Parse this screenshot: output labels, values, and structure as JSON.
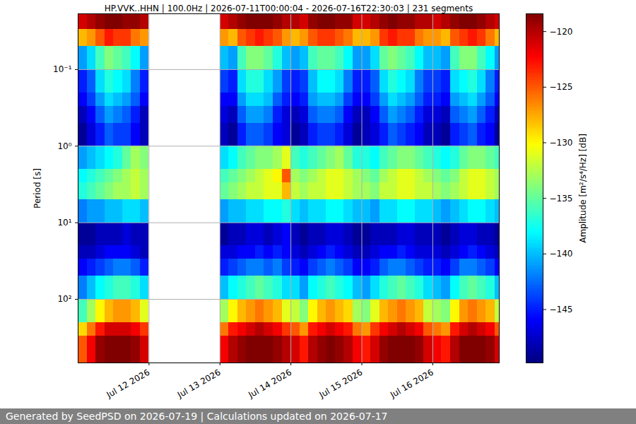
{
  "chart_data": {
    "type": "heatmap",
    "title": "HP.VVK..HHN | 100.0Hz | 2026-07-11T00:00:04 - 2026-07-16T22:30:03 | 231 segments",
    "ylabel": "Period [s]",
    "footer": "Generated by SeedPSD on 2026-07-19 | Calculations updated on 2026-07-17",
    "log": "y",
    "grid": true,
    "color": "jet",
    "xlim": [
      "2026-07-11T00:00:04",
      "2026-07-16T22:30:03"
    ],
    "xticks": [
      {
        "value": "2026-07-12",
        "label": "Jul 12 2026"
      },
      {
        "value": "2026-07-13",
        "label": "Jul 13 2026"
      },
      {
        "value": "2026-07-14",
        "label": "Jul 14 2026"
      },
      {
        "value": "2026-07-15",
        "label": "Jul 15 2026"
      },
      {
        "value": "2026-07-16",
        "label": "Jul 16 2026"
      }
    ],
    "ylim": [
      0.0187,
      676
    ],
    "yticks": [
      {
        "value": 0.1,
        "label": "10⁻¹"
      },
      {
        "value": 1,
        "label": "10⁰"
      },
      {
        "value": 10,
        "label": "10¹"
      },
      {
        "value": 100,
        "label": "10²"
      }
    ],
    "colorbar": {
      "label": "Amplitude [m²/s⁴/Hz] [dB]",
      "lim": [
        -149.8,
        -118.4
      ],
      "ticks": [
        -145,
        -140,
        -135,
        -130,
        -125,
        -120
      ]
    },
    "x_edges": [
      "2026-07-11T00:00:04",
      "2026-07-11T03:00:00",
      "2026-07-11T06:00:00",
      "2026-07-11T09:00:00",
      "2026-07-11T12:00:00",
      "2026-07-11T15:00:00",
      "2026-07-11T18:00:00",
      "2026-07-11T21:00:00",
      "2026-07-12T00:00:00",
      "2026-07-12T03:00:00",
      "2026-07-12T06:00:00",
      "2026-07-12T09:00:00",
      "2026-07-12T12:00:00",
      "2026-07-12T15:00:00",
      "2026-07-12T18:00:00",
      "2026-07-12T21:00:00",
      "2026-07-13T00:00:00",
      "2026-07-13T03:00:00",
      "2026-07-13T06:00:00",
      "2026-07-13T09:00:00",
      "2026-07-13T12:00:00",
      "2026-07-13T15:00:00",
      "2026-07-13T18:00:00",
      "2026-07-13T21:00:00",
      "2026-07-14T00:00:00",
      "2026-07-14T03:00:00",
      "2026-07-14T06:00:00",
      "2026-07-14T09:00:00",
      "2026-07-14T12:00:00",
      "2026-07-14T15:00:00",
      "2026-07-14T18:00:00",
      "2026-07-14T21:00:00",
      "2026-07-15T00:00:00",
      "2026-07-15T03:00:00",
      "2026-07-15T06:00:00",
      "2026-07-15T09:00:00",
      "2026-07-15T12:00:00",
      "2026-07-15T15:00:00",
      "2026-07-15T18:00:00",
      "2026-07-15T21:00:00",
      "2026-07-16T00:00:00",
      "2026-07-16T03:00:00",
      "2026-07-16T06:00:00",
      "2026-07-16T09:00:00",
      "2026-07-16T12:00:00",
      "2026-07-16T15:00:00",
      "2026-07-16T18:00:00",
      "2026-07-16T21:00:00",
      "2026-07-16T22:30:03"
    ],
    "y_edges": [
      0.0187,
      0.03,
      0.05,
      0.1,
      0.2,
      0.3,
      0.5,
      1,
      2,
      3,
      5,
      10,
      20,
      30,
      50,
      100,
      200,
      300,
      676
    ],
    "cells": [
      [
        -121,
        -120,
        -119,
        -118,
        -118,
        -119,
        -119,
        -120,
        null,
        null,
        null,
        null,
        null,
        null,
        null,
        null,
        -121,
        -120,
        -119,
        -118,
        -118,
        -118,
        -119,
        -120,
        -120,
        -121,
        -119,
        -118,
        -118,
        -119,
        -119,
        -121,
        -121,
        -120,
        -119,
        -118,
        -119,
        -119,
        -120,
        -120,
        -121,
        -120,
        -119,
        -118,
        -118,
        -119,
        -120,
        -121
      ],
      [
        -128,
        -127,
        -125,
        -123,
        -124,
        -124,
        -126,
        -127,
        null,
        null,
        null,
        null,
        null,
        null,
        null,
        null,
        -127,
        -128,
        -125,
        -124,
        -123,
        -124,
        -125,
        -127,
        -128,
        -127,
        -125,
        -124,
        -124,
        -125,
        -126,
        -128,
        -128,
        -127,
        -124,
        -123,
        -124,
        -124,
        -126,
        -127,
        -127,
        -128,
        -125,
        -124,
        -123,
        -124,
        -126,
        -128
      ],
      [
        -141,
        -139,
        -136,
        -134,
        -135,
        -136,
        -138,
        -141,
        null,
        null,
        null,
        null,
        null,
        null,
        null,
        null,
        -140,
        -141,
        -136,
        -134,
        -134,
        -135,
        -137,
        -140,
        -141,
        -140,
        -136,
        -135,
        -135,
        -136,
        -138,
        -141,
        -141,
        -139,
        -135,
        -134,
        -135,
        -136,
        -138,
        -140,
        -140,
        -141,
        -136,
        -134,
        -134,
        -136,
        -138,
        -141
      ],
      [
        -145,
        -143,
        -139,
        -137,
        -138,
        -139,
        -142,
        -145,
        null,
        null,
        null,
        null,
        null,
        null,
        null,
        null,
        -144,
        -145,
        -139,
        -137,
        -137,
        -139,
        -141,
        -144,
        -145,
        -144,
        -140,
        -138,
        -138,
        -139,
        -142,
        -145,
        -145,
        -143,
        -139,
        -137,
        -138,
        -139,
        -142,
        -144,
        -144,
        -145,
        -139,
        -138,
        -137,
        -139,
        -142,
        -145
      ],
      [
        -146,
        -144,
        -141,
        -139,
        -140,
        -141,
        -143,
        -146,
        null,
        null,
        null,
        null,
        null,
        null,
        null,
        null,
        -146,
        -146,
        -141,
        -139,
        -139,
        -140,
        -143,
        -145,
        -146,
        -145,
        -141,
        -140,
        -140,
        -141,
        -144,
        -146,
        -146,
        -144,
        -141,
        -139,
        -140,
        -141,
        -143,
        -145,
        -145,
        -146,
        -141,
        -140,
        -139,
        -141,
        -143,
        -146
      ],
      [
        -148,
        -146,
        -143,
        -141,
        -142,
        -143,
        -145,
        -148,
        null,
        null,
        null,
        null,
        null,
        null,
        null,
        null,
        -147,
        -148,
        -143,
        -141,
        -141,
        -142,
        -145,
        -147,
        -148,
        -147,
        -143,
        -142,
        -142,
        -143,
        -146,
        -148,
        -148,
        -146,
        -143,
        -141,
        -142,
        -143,
        -145,
        -147,
        -147,
        -148,
        -143,
        -142,
        -141,
        -143,
        -145,
        -148
      ],
      [
        -149,
        -147,
        -145,
        -143,
        -144,
        -144,
        -146,
        -148,
        null,
        null,
        null,
        null,
        null,
        null,
        null,
        null,
        -148,
        -149,
        -145,
        -143,
        -143,
        -144,
        -146,
        -147,
        -149,
        -148,
        -145,
        -144,
        -144,
        -145,
        -147,
        -149,
        -148,
        -147,
        -145,
        -143,
        -144,
        -145,
        -146,
        -148,
        -148,
        -149,
        -145,
        -144,
        -143,
        -145,
        -146,
        -149
      ],
      [
        -141,
        -140,
        -139,
        -138,
        -137,
        -135,
        -133,
        -134,
        null,
        null,
        null,
        null,
        null,
        null,
        null,
        null,
        -139,
        -138,
        -136,
        -135,
        -134,
        -134,
        -133,
        -131,
        -136,
        -137,
        -136,
        -135,
        -134,
        -133,
        -135,
        -137,
        -137,
        -138,
        -136,
        -135,
        -134,
        -134,
        -135,
        -136,
        -137,
        -138,
        -137,
        -135,
        -134,
        -134,
        -135,
        -136
      ],
      [
        -138,
        -137,
        -136,
        -135,
        -134,
        -133,
        -132,
        -133,
        null,
        null,
        null,
        null,
        null,
        null,
        null,
        null,
        -136,
        -135,
        -134,
        -133,
        -132,
        -131,
        -130,
        -125,
        -133,
        -134,
        -133,
        -132,
        -131,
        -131,
        -132,
        -133,
        -134,
        -135,
        -133,
        -132,
        -131,
        -131,
        -132,
        -133,
        -134,
        -135,
        -134,
        -132,
        -131,
        -131,
        -132,
        -133
      ],
      [
        -137,
        -136,
        -135,
        -134,
        -133,
        -133,
        -132,
        -133,
        null,
        null,
        null,
        null,
        null,
        null,
        null,
        null,
        -135,
        -134,
        -133,
        -132,
        -132,
        -131,
        -131,
        -128,
        -132,
        -133,
        -132,
        -132,
        -131,
        -131,
        -132,
        -133,
        -133,
        -134,
        -132,
        -132,
        -131,
        -131,
        -132,
        -132,
        -133,
        -134,
        -133,
        -132,
        -131,
        -131,
        -132,
        -133
      ],
      [
        -142,
        -141,
        -141,
        -140,
        -140,
        -139,
        -139,
        -140,
        null,
        null,
        null,
        null,
        null,
        null,
        null,
        null,
        -141,
        -140,
        -140,
        -139,
        -139,
        -138,
        -138,
        -137,
        -139,
        -140,
        -139,
        -139,
        -138,
        -138,
        -139,
        -140,
        -140,
        -141,
        -139,
        -139,
        -138,
        -138,
        -139,
        -139,
        -140,
        -141,
        -140,
        -139,
        -138,
        -138,
        -139,
        -140
      ],
      [
        -149,
        -149,
        -148,
        -148,
        -148,
        -147,
        -148,
        -148,
        null,
        null,
        null,
        null,
        null,
        null,
        null,
        null,
        -149,
        -148,
        -148,
        -147,
        -147,
        -148,
        -147,
        -146,
        -148,
        -149,
        -148,
        -148,
        -147,
        -147,
        -148,
        -149,
        -149,
        -148,
        -148,
        -148,
        -147,
        -147,
        -148,
        -148,
        -148,
        -149,
        -148,
        -147,
        -147,
        -148,
        -148,
        -149
      ],
      [
        -148,
        -148,
        -147,
        -146,
        -146,
        -146,
        -147,
        -148,
        null,
        null,
        null,
        null,
        null,
        null,
        null,
        null,
        -147,
        -147,
        -146,
        -146,
        -145,
        -146,
        -145,
        -146,
        -147,
        -148,
        -147,
        -146,
        -145,
        -146,
        -147,
        -148,
        -148,
        -147,
        -146,
        -146,
        -145,
        -146,
        -147,
        -147,
        -147,
        -148,
        -147,
        -146,
        -145,
        -146,
        -147,
        -148
      ],
      [
        -146,
        -145,
        -144,
        -143,
        -142,
        -142,
        -143,
        -145,
        null,
        null,
        null,
        null,
        null,
        null,
        null,
        null,
        -145,
        -144,
        -143,
        -142,
        -142,
        -143,
        -142,
        -144,
        -145,
        -146,
        -144,
        -143,
        -142,
        -143,
        -144,
        -146,
        -146,
        -145,
        -143,
        -142,
        -142,
        -143,
        -144,
        -145,
        -145,
        -146,
        -144,
        -142,
        -142,
        -143,
        -144,
        -146
      ],
      [
        -142,
        -140,
        -138,
        -137,
        -136,
        -136,
        -137,
        -139,
        null,
        null,
        null,
        null,
        null,
        null,
        null,
        null,
        -140,
        -138,
        -137,
        -136,
        -135,
        -136,
        -137,
        -139,
        -139,
        -141,
        -138,
        -137,
        -136,
        -137,
        -138,
        -140,
        -141,
        -139,
        -137,
        -136,
        -135,
        -136,
        -137,
        -139,
        -140,
        -141,
        -138,
        -136,
        -135,
        -136,
        -137,
        -140
      ],
      [
        -136,
        -133,
        -130,
        -128,
        -127,
        -127,
        -128,
        -131,
        null,
        null,
        null,
        null,
        null,
        null,
        null,
        null,
        -133,
        -130,
        -128,
        -127,
        -126,
        -127,
        -128,
        -131,
        -132,
        -134,
        -130,
        -128,
        -127,
        -128,
        -129,
        -133,
        -134,
        -131,
        -128,
        -127,
        -126,
        -127,
        -128,
        -132,
        -133,
        -134,
        -130,
        -127,
        -126,
        -127,
        -128,
        -132
      ],
      [
        -129,
        -126,
        -123,
        -121,
        -121,
        -121,
        -122,
        -124,
        null,
        null,
        null,
        null,
        null,
        null,
        null,
        null,
        -126,
        -123,
        -122,
        -121,
        -120,
        -121,
        -122,
        -124,
        -125,
        -127,
        -123,
        -122,
        -121,
        -122,
        -123,
        -126,
        -127,
        -124,
        -122,
        -121,
        -120,
        -121,
        -122,
        -125,
        -126,
        -127,
        -123,
        -121,
        -120,
        -121,
        -122,
        -125
      ],
      [
        -125,
        -122,
        -119,
        -118,
        -118,
        -118,
        -119,
        -121,
        null,
        null,
        null,
        null,
        null,
        null,
        null,
        null,
        -122,
        -120,
        -119,
        -118,
        -118,
        -118,
        -119,
        -120,
        -121,
        -123,
        -120,
        -119,
        -118,
        -119,
        -120,
        -122,
        -123,
        -121,
        -119,
        -118,
        -118,
        -118,
        -119,
        -121,
        -122,
        -123,
        -120,
        -118,
        -118,
        -118,
        -119,
        -121
      ]
    ]
  }
}
